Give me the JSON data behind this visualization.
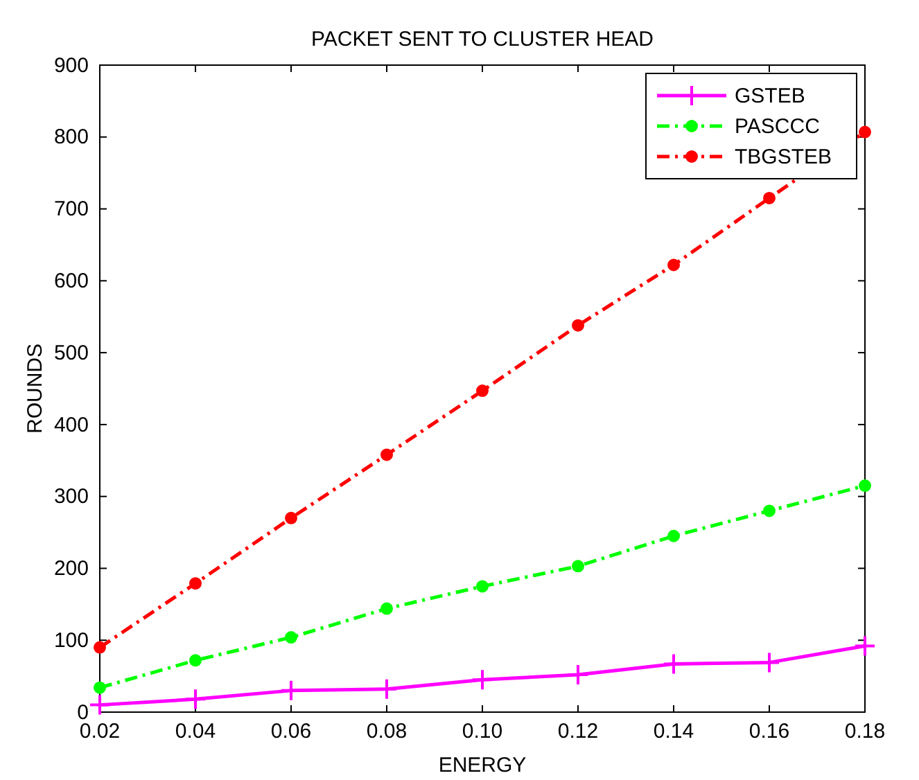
{
  "chart_data": {
    "type": "line",
    "title": "PACKET SENT TO CLUSTER HEAD",
    "xlabel": "ENERGY",
    "ylabel": "ROUNDS",
    "x": [
      0.02,
      0.04,
      0.06,
      0.08,
      0.1,
      0.12,
      0.14,
      0.16,
      0.18
    ],
    "series": [
      {
        "name": "GSTEB",
        "color": "#ff00ff",
        "marker": "cross",
        "line_style": "solid",
        "values": [
          10,
          18,
          30,
          32,
          45,
          52,
          67,
          69,
          92
        ]
      },
      {
        "name": "PASCCC",
        "color": "#00ff00",
        "marker": "circle",
        "line_style": "dashed",
        "values": [
          34,
          72,
          104,
          144,
          175,
          203,
          245,
          280,
          315
        ]
      },
      {
        "name": "TBGSTEB",
        "color": "#ff0000",
        "marker": "circle",
        "line_style": "dashed",
        "values": [
          90,
          179,
          270,
          358,
          447,
          538,
          622,
          715,
          807
        ]
      }
    ],
    "xlim": [
      0.02,
      0.18
    ],
    "xticks": [
      {
        "value": 0.02,
        "label": "0.02"
      },
      {
        "value": 0.04,
        "label": "0.04"
      },
      {
        "value": 0.06,
        "label": "0.06"
      },
      {
        "value": 0.08,
        "label": "0.08"
      },
      {
        "value": 0.1,
        "label": "0.10"
      },
      {
        "value": 0.12,
        "label": "0.12"
      },
      {
        "value": 0.14,
        "label": "0.14"
      },
      {
        "value": 0.16,
        "label": "0.16"
      },
      {
        "value": 0.18,
        "label": "0.18"
      }
    ],
    "ylim": [
      0,
      900
    ],
    "yticks": [
      0,
      100,
      200,
      300,
      400,
      500,
      600,
      700,
      800,
      900
    ],
    "legend": "top right",
    "grid": false
  }
}
